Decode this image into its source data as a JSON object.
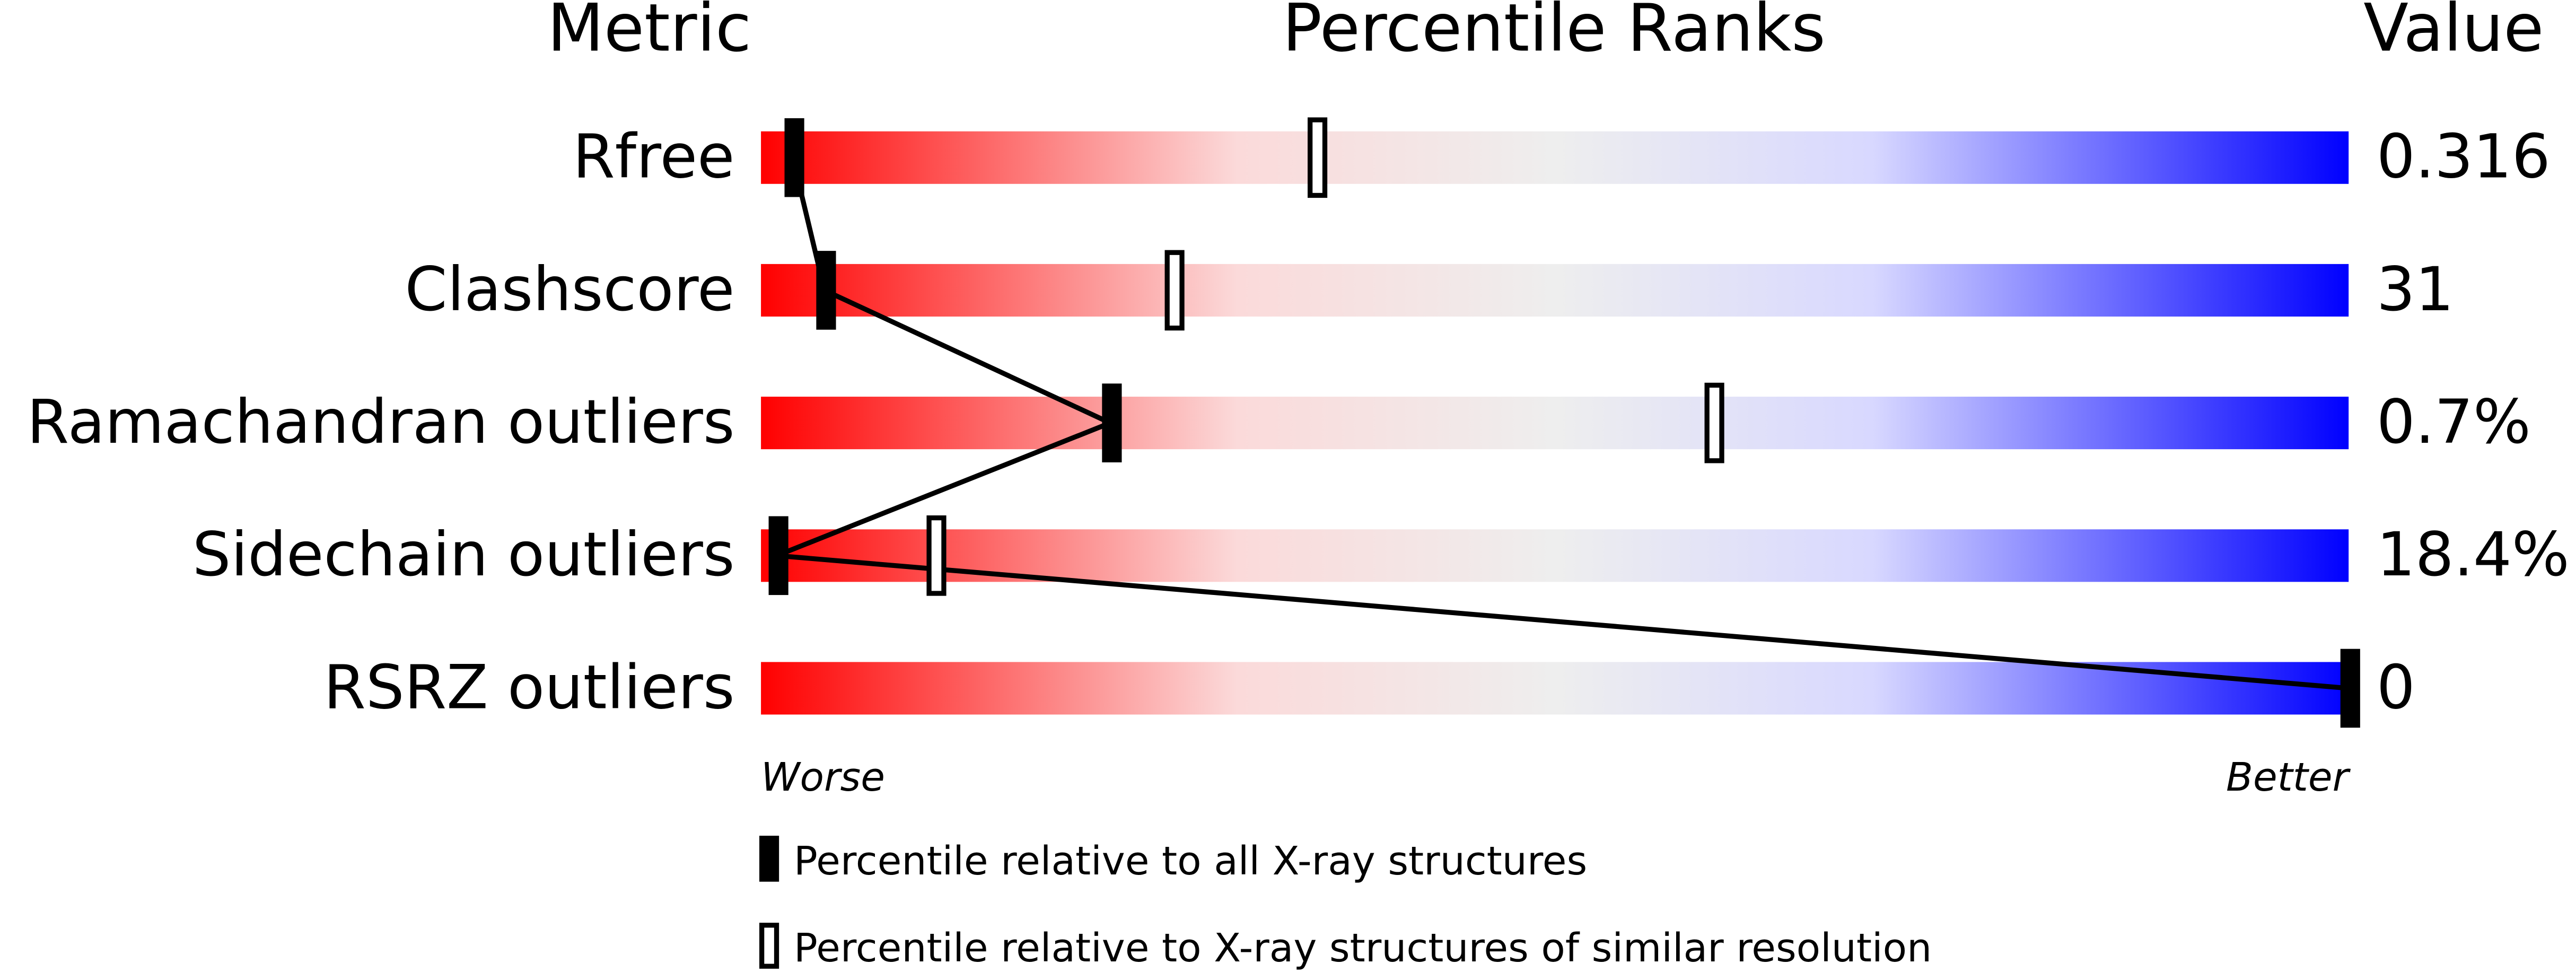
{
  "chart_data": {
    "type": "percentile-slider",
    "headers": [
      "Metric",
      "Percentile Ranks",
      "Value"
    ],
    "categories": [
      "Rfree",
      "Clashscore",
      "Ramachandran outliers",
      "Sidechain outliers",
      "RSRZ outliers"
    ],
    "metric_values": [
      "0.316",
      "31",
      "0.7%",
      "18.4%",
      "0"
    ],
    "xlim": [
      0,
      100
    ],
    "axis_labels": [
      "Worse",
      "Better"
    ],
    "gradient": [
      "#ff0000",
      "#fbdada",
      "#eeeeee",
      "#d8d8ff",
      "#0000ff"
    ],
    "series": [
      {
        "name": "Percentile relative to all X-ray structures",
        "color": "#000000",
        "style": "filled",
        "values": [
          2,
          4,
          22,
          1,
          100
        ]
      },
      {
        "name": "Percentile relative to X-ray structures of similar resolution",
        "color": "#000000",
        "style": "hollow",
        "values": [
          35,
          26,
          60,
          11,
          null
        ]
      }
    ]
  }
}
